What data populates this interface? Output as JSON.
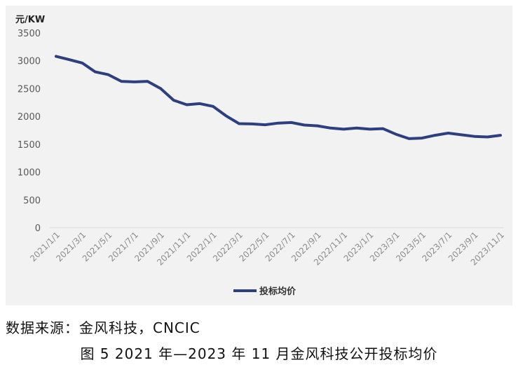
{
  "chart_data": {
    "type": "line",
    "ylabel": "元/KW",
    "ylim": [
      0,
      3500
    ],
    "yticks": [
      "3500",
      "3000",
      "2500",
      "2000",
      "1500",
      "1000",
      "500",
      "0"
    ],
    "xtick_labels": [
      "2021/1/1",
      "2021/3/1",
      "2021/5/1",
      "2021/7/1",
      "2021/9/1",
      "2021/11/1",
      "2022/1/1",
      "2022/3/1",
      "2022/5/1",
      "2022/7/1",
      "2022/9/1",
      "2022/11/1",
      "2023/1/1",
      "2023/3/1",
      "2023/5/1",
      "2023/7/1",
      "2023/9/1",
      "2023/11/1"
    ],
    "x": [
      "2021/1",
      "2021/2",
      "2021/3",
      "2021/4",
      "2021/5",
      "2021/6",
      "2021/7",
      "2021/8",
      "2021/9",
      "2021/10",
      "2021/11",
      "2021/12",
      "2022/1",
      "2022/2",
      "2022/3",
      "2022/4",
      "2022/5",
      "2022/6",
      "2022/7",
      "2022/8",
      "2022/9",
      "2022/10",
      "2022/11",
      "2022/12",
      "2023/1",
      "2023/2",
      "2023/3",
      "2023/4",
      "2023/5",
      "2023/6",
      "2023/7",
      "2023/8",
      "2023/9",
      "2023/10",
      "2023/11"
    ],
    "series": [
      {
        "name": "投标均价",
        "color": "#2e3f7f",
        "values": [
          3080,
          3020,
          2960,
          2800,
          2750,
          2630,
          2620,
          2630,
          2500,
          2290,
          2210,
          2230,
          2180,
          2010,
          1870,
          1865,
          1850,
          1880,
          1890,
          1845,
          1830,
          1790,
          1770,
          1790,
          1770,
          1780,
          1680,
          1600,
          1610,
          1660,
          1700,
          1670,
          1640,
          1630,
          1660
        ]
      }
    ],
    "grid": false,
    "legend_position": "bottom"
  },
  "source_text": "数据来源：金风科技，CNCIC",
  "caption": "图 5  2021 年—2023 年 11 月金风科技公开投标均价"
}
